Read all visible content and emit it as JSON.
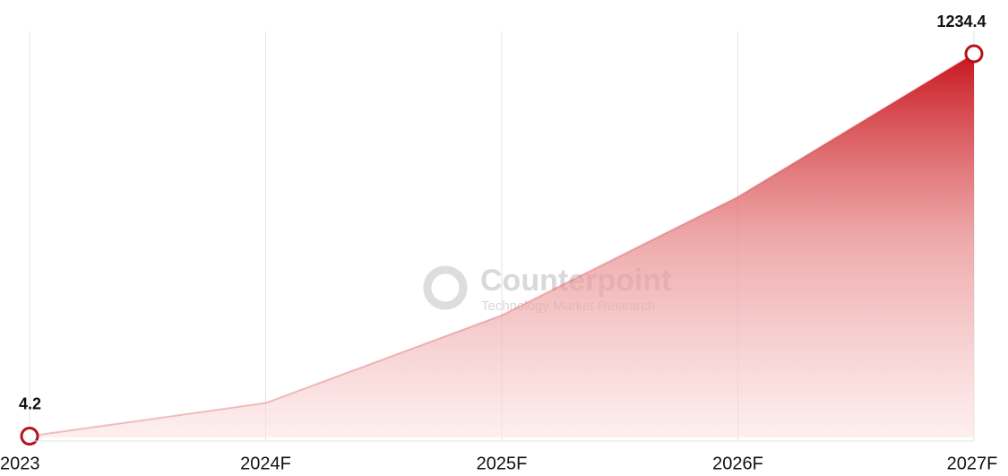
{
  "chart_data": {
    "type": "area",
    "categories": [
      "2023",
      "2024F",
      "2025F",
      "2026F",
      "2027F"
    ],
    "values": [
      4.2,
      111,
      393,
      774,
      1234.4
    ],
    "color": "#c8161d",
    "grid": true,
    "watermark": {
      "name": "Counterpoint",
      "tagline": "Technology Market Research"
    }
  }
}
